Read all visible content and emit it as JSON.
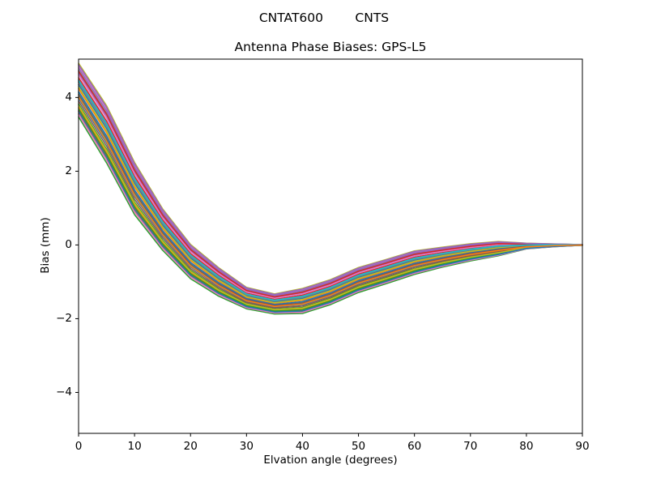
{
  "figure": {
    "suptitle": "CNTAT600        CNTS",
    "title": "Antenna Phase Biases: GPS-L5",
    "xlabel": "Elvation angle (degrees)",
    "ylabel": "Bias (mm)"
  },
  "chart_data": {
    "type": "line",
    "suptitle": "CNTAT600        CNTS",
    "title": "Antenna Phase Biases: GPS-L5",
    "xlabel": "Elvation angle (degrees)",
    "ylabel": "Bias (mm)",
    "xlim": [
      0,
      90
    ],
    "ylim": [
      -5.11,
      5.04
    ],
    "grid": false,
    "legend": "none",
    "background": "#ffffff",
    "axis_color": "#000000",
    "xticks": {
      "values": [
        0,
        10,
        20,
        30,
        40,
        50,
        60,
        70,
        80,
        90
      ],
      "labels": [
        "0",
        "10",
        "20",
        "30",
        "40",
        "50",
        "60",
        "70",
        "80",
        "90"
      ]
    },
    "yticks": {
      "values": [
        -4,
        -2,
        0,
        2,
        4
      ],
      "labels": [
        "−4",
        "−2",
        "0",
        "2",
        "4"
      ]
    },
    "x": [
      0,
      5,
      10,
      15,
      20,
      25,
      30,
      35,
      40,
      45,
      50,
      55,
      60,
      65,
      70,
      75,
      80,
      85,
      90
    ],
    "envelope_center": [
      4.2,
      3.0,
      1.53,
      0.42,
      -0.45,
      -1.0,
      -1.44,
      -1.6,
      -1.52,
      -1.28,
      -0.95,
      -0.72,
      -0.48,
      -0.33,
      -0.2,
      -0.1,
      -0.03,
      -0.01,
      0.0
    ],
    "envelope_halfwidth": [
      0.75,
      0.8,
      0.73,
      0.58,
      0.48,
      0.4,
      0.3,
      0.28,
      0.35,
      0.35,
      0.35,
      0.34,
      0.33,
      0.28,
      0.24,
      0.2,
      0.08,
      0.04,
      0.01
    ],
    "series": [
      {
        "color": "#1f77b4",
        "offset": -0.3
      },
      {
        "color": "#ff7f0e",
        "offset": 0.05
      },
      {
        "color": "#2ca02c",
        "offset": -0.5
      },
      {
        "color": "#d62728",
        "offset": 0.45
      },
      {
        "color": "#9467bd",
        "offset": 0.62
      },
      {
        "color": "#8c564b",
        "offset": 0.3
      },
      {
        "color": "#e377c2",
        "offset": 0.88
      },
      {
        "color": "#7f7f7f",
        "offset": 0.72
      },
      {
        "color": "#bcbd22",
        "offset": 0.97
      },
      {
        "color": "#17becf",
        "offset": -0.1
      },
      {
        "color": "#1f77b4",
        "offset": 0.2
      },
      {
        "color": "#ff7f0e",
        "offset": -0.62
      },
      {
        "color": "#2ca02c",
        "offset": -0.97
      },
      {
        "color": "#d62728",
        "offset": -0.75
      },
      {
        "color": "#9467bd",
        "offset": 0.8
      },
      {
        "color": "#8c564b",
        "offset": -0.4
      },
      {
        "color": "#e377c2",
        "offset": 0.55
      },
      {
        "color": "#7f7f7f",
        "offset": 0.38
      },
      {
        "color": "#bcbd22",
        "offset": 0.12
      },
      {
        "color": "#17becf",
        "offset": -0.2
      },
      {
        "color": "#1f77b4",
        "offset": -0.05
      },
      {
        "color": "#ff7f0e",
        "offset": -0.85
      },
      {
        "color": "#2ca02c",
        "offset": -0.68
      },
      {
        "color": "#d62728",
        "offset": 0.68
      },
      {
        "color": "#9467bd",
        "offset": 0.92
      },
      {
        "color": "#8c564b",
        "offset": -0.15
      },
      {
        "color": "#e377c2",
        "offset": -0.88
      },
      {
        "color": "#7f7f7f",
        "offset": 0.28
      },
      {
        "color": "#bcbd22",
        "offset": -0.55
      },
      {
        "color": "#17becf",
        "offset": 0.35
      },
      {
        "color": "#1f77b4",
        "offset": -0.78
      },
      {
        "color": "#ff7f0e",
        "offset": -0.25
      }
    ]
  }
}
